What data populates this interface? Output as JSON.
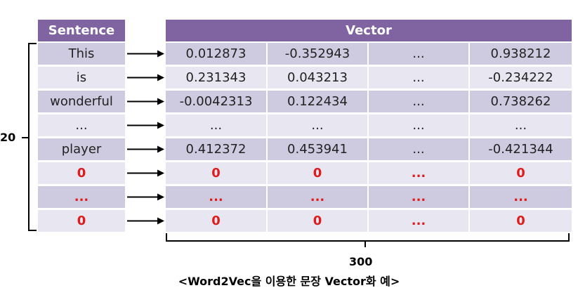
{
  "headers": {
    "sentence": "Sentence",
    "vector": "Vector"
  },
  "rows": [
    {
      "word": "This",
      "v1": "0.012873",
      "v2": "-0.352943",
      "v3": "...",
      "v4": "0.938212",
      "padding": false
    },
    {
      "word": "is",
      "v1": "0.231343",
      "v2": "0.043213",
      "v3": "...",
      "v4": "-0.234222",
      "padding": false
    },
    {
      "word": "wonderful",
      "v1": "-0.0042313",
      "v2": "0.122434",
      "v3": "...",
      "v4": "0.738262",
      "padding": false
    },
    {
      "word": "...",
      "v1": "...",
      "v2": "...",
      "v3": "...",
      "v4": "...",
      "padding": false
    },
    {
      "word": "player",
      "v1": "0.412372",
      "v2": "0.453941",
      "v3": "...",
      "v4": "-0.421344",
      "padding": false
    },
    {
      "word": "0",
      "v1": "0",
      "v2": "0",
      "v3": "...",
      "v4": "0",
      "padding": true
    },
    {
      "word": "...",
      "v1": "...",
      "v2": "...",
      "v3": "...",
      "v4": "...",
      "padding": true
    },
    {
      "word": "0",
      "v1": "0",
      "v2": "0",
      "v3": "...",
      "v4": "0",
      "padding": true
    }
  ],
  "rows_label": "20",
  "dim_label": "300",
  "caption": "<Word2Vec을 이용한 문장 Vector화 예>",
  "colors": {
    "header": "#8064a2",
    "row_odd": "#cecbe0",
    "row_even": "#e8e6f1",
    "padding_text": "#e01b1b"
  }
}
